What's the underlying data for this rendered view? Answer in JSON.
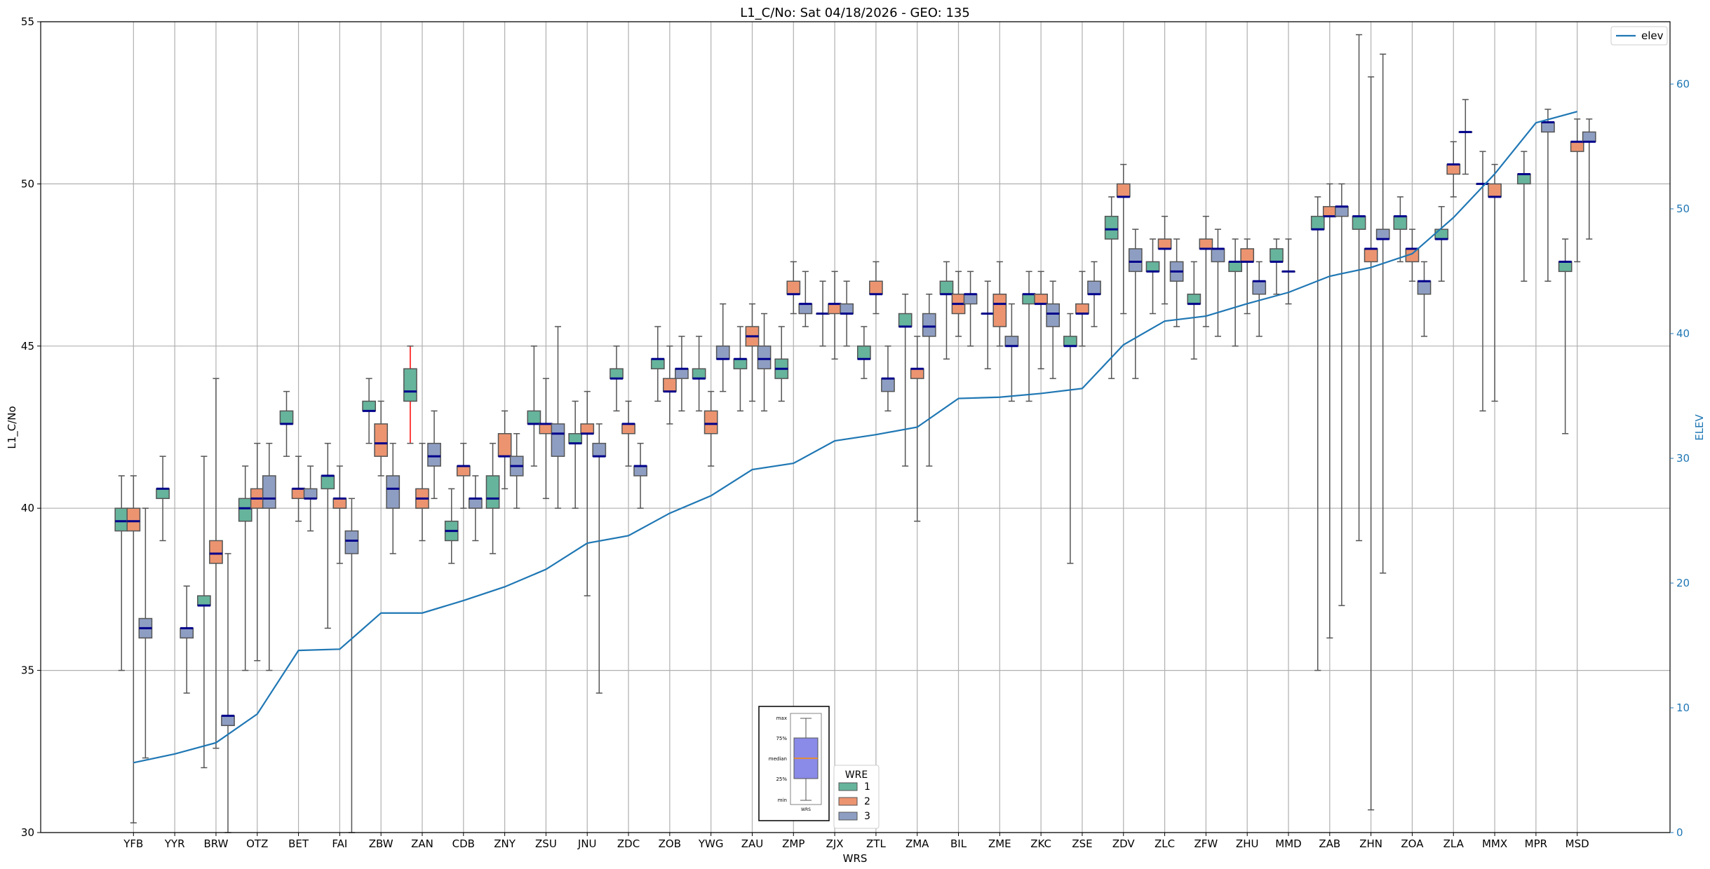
{
  "chart_data": {
    "type": "boxplot",
    "title": "L1_C/No: Sat 04/18/2026 - GEO: 135",
    "xlabel": "WRS",
    "ylabel": "L1_C/No",
    "y2label": "ELEV",
    "ylim": [
      30,
      55
    ],
    "y2lim": [
      0,
      65
    ],
    "yticks": [
      30,
      35,
      40,
      45,
      50,
      55
    ],
    "y2ticks": [
      0,
      10,
      20,
      30,
      40,
      50,
      60
    ],
    "grid": true,
    "colors": {
      "wre1": "#66b49c",
      "wre2": "#ec9470",
      "wre3": "#8e9ec3",
      "median": "#00008b",
      "elev": "#1f77b4",
      "whisker": "#555555",
      "whisker_alert": "#ff0000"
    },
    "legend_elev": {
      "label": "elev",
      "placement": "top-right"
    },
    "legend_wre": {
      "title": "WRE",
      "entries": [
        "1",
        "2",
        "3"
      ],
      "placement": "bottom-center"
    },
    "box_key": {
      "labels": [
        "max",
        "75%",
        "median",
        "25%",
        "min"
      ],
      "xlabel": "WRS"
    },
    "box_fields": [
      "wre",
      "min",
      "q1",
      "median",
      "q3",
      "max"
    ],
    "stations": [
      {
        "name": "YFB",
        "elev": 5.6,
        "boxes": [
          [
            1,
            35,
            39.3,
            39.6,
            40,
            41
          ],
          [
            2,
            30.3,
            39.3,
            39.6,
            40,
            41
          ],
          [
            3,
            32.3,
            36,
            36.3,
            36.6,
            40
          ]
        ]
      },
      {
        "name": "YYR",
        "elev": 6.3,
        "boxes": [
          [
            1,
            39,
            40.3,
            40.6,
            40.6,
            41.6
          ],
          [
            3,
            34.3,
            36,
            36.3,
            36.3,
            37.6
          ]
        ]
      },
      {
        "name": "BRW",
        "elev": 7.2,
        "boxes": [
          [
            1,
            32,
            37,
            37,
            37.3,
            41.6
          ],
          [
            2,
            32.6,
            38.3,
            38.6,
            39,
            44
          ],
          [
            3,
            30,
            33.3,
            33.6,
            33.6,
            38.6
          ]
        ]
      },
      {
        "name": "OTZ",
        "elev": 9.5,
        "boxes": [
          [
            1,
            35,
            39.6,
            40,
            40.3,
            41.3
          ],
          [
            2,
            35.3,
            40,
            40.3,
            40.6,
            42
          ],
          [
            3,
            35,
            40,
            40.3,
            41,
            42
          ]
        ]
      },
      {
        "name": "BET",
        "elev": 14.6,
        "boxes": [
          [
            1,
            41.6,
            42.6,
            42.6,
            43,
            43.6
          ],
          [
            2,
            39.6,
            40.3,
            40.6,
            40.6,
            41.6
          ],
          [
            3,
            39.3,
            40.3,
            40.3,
            40.6,
            41.3
          ]
        ]
      },
      {
        "name": "FAI",
        "elev": 14.7,
        "boxes": [
          [
            1,
            36.3,
            40.6,
            41,
            41,
            42
          ],
          [
            2,
            38.3,
            40,
            40.3,
            40.3,
            41.3
          ],
          [
            3,
            30,
            38.6,
            39,
            39.3,
            40.3
          ]
        ]
      },
      {
        "name": "ZBW",
        "elev": 17.6,
        "boxes": [
          [
            1,
            42,
            43,
            43,
            43.3,
            44
          ],
          [
            2,
            41,
            41.6,
            42,
            42.6,
            43.3
          ],
          [
            3,
            38.6,
            40,
            40.6,
            41,
            42
          ]
        ]
      },
      {
        "name": "ZAN",
        "elev": 17.6,
        "alert": 1,
        "boxes": [
          [
            1,
            42,
            43.3,
            43.6,
            44.3,
            45
          ],
          [
            2,
            39,
            40,
            40.3,
            40.6,
            42
          ],
          [
            3,
            40.3,
            41.3,
            41.6,
            42,
            43
          ]
        ]
      },
      {
        "name": "CDB",
        "elev": 18.6,
        "boxes": [
          [
            1,
            38.3,
            39,
            39.3,
            39.6,
            40.6
          ],
          [
            2,
            40,
            41,
            41.3,
            41.3,
            42
          ],
          [
            3,
            39,
            40,
            40.3,
            40.3,
            41
          ]
        ]
      },
      {
        "name": "ZNY",
        "elev": 19.7,
        "boxes": [
          [
            1,
            38.6,
            40,
            40.3,
            41,
            42
          ],
          [
            2,
            40.6,
            41.6,
            41.6,
            42.3,
            43
          ],
          [
            3,
            40,
            41,
            41.3,
            41.6,
            42.3
          ]
        ]
      },
      {
        "name": "ZSU",
        "elev": 21.1,
        "boxes": [
          [
            1,
            41.3,
            42.6,
            42.6,
            43,
            45
          ],
          [
            2,
            40.3,
            42.3,
            42.6,
            42.6,
            44
          ],
          [
            3,
            40,
            41.6,
            42.3,
            42.6,
            45.6
          ]
        ]
      },
      {
        "name": "JNU",
        "elev": 23.2,
        "boxes": [
          [
            1,
            40,
            42,
            42,
            42.3,
            43.3
          ],
          [
            2,
            37.3,
            42.3,
            42.3,
            42.6,
            43.6
          ],
          [
            3,
            34.3,
            41.6,
            41.6,
            42,
            42.6
          ]
        ]
      },
      {
        "name": "ZDC",
        "elev": 23.8,
        "boxes": [
          [
            1,
            43,
            44,
            44,
            44.3,
            45
          ],
          [
            2,
            41.3,
            42.3,
            42.6,
            42.6,
            43.3
          ],
          [
            3,
            40,
            41,
            41.3,
            41.3,
            42
          ]
        ]
      },
      {
        "name": "ZOB",
        "elev": 25.6,
        "boxes": [
          [
            1,
            43.3,
            44.3,
            44.6,
            44.6,
            45.6
          ],
          [
            2,
            42.6,
            43.6,
            43.6,
            44,
            45
          ],
          [
            3,
            43,
            44,
            44.3,
            44.3,
            45.3
          ]
        ]
      },
      {
        "name": "YWG",
        "elev": 27.0,
        "boxes": [
          [
            1,
            43,
            44,
            44,
            44.3,
            45.3
          ],
          [
            2,
            41.3,
            42.3,
            42.6,
            43,
            43.6
          ],
          [
            3,
            43.6,
            44.6,
            44.6,
            45,
            46.3
          ]
        ]
      },
      {
        "name": "ZAU",
        "elev": 29.1,
        "boxes": [
          [
            1,
            43,
            44.3,
            44.6,
            44.6,
            45.6
          ],
          [
            2,
            43.3,
            45,
            45.3,
            45.6,
            46.3
          ],
          [
            3,
            43,
            44.3,
            44.6,
            45,
            46
          ]
        ]
      },
      {
        "name": "ZMP",
        "elev": 29.6,
        "boxes": [
          [
            1,
            43.3,
            44,
            44.3,
            44.6,
            45.6
          ],
          [
            2,
            46,
            46.6,
            46.6,
            47,
            47.6
          ],
          [
            3,
            45.6,
            46,
            46.3,
            46.3,
            47.3
          ]
        ]
      },
      {
        "name": "ZJX",
        "elev": 31.4,
        "boxes": [
          [
            1,
            45,
            46,
            46,
            46,
            47
          ],
          [
            2,
            44.6,
            46,
            46.3,
            46.3,
            47.3
          ],
          [
            3,
            45,
            46,
            46,
            46.3,
            47
          ]
        ]
      },
      {
        "name": "ZTL",
        "elev": 31.9,
        "boxes": [
          [
            1,
            44,
            44.6,
            44.6,
            45,
            45.6
          ],
          [
            2,
            46,
            46.6,
            46.6,
            47,
            47.6
          ],
          [
            3,
            43,
            43.6,
            44,
            44,
            45
          ]
        ]
      },
      {
        "name": "ZMA",
        "elev": 32.5,
        "boxes": [
          [
            1,
            41.3,
            45.6,
            45.6,
            46,
            46.6
          ],
          [
            2,
            39.6,
            44,
            44.3,
            44.3,
            45.3
          ],
          [
            3,
            41.3,
            45.3,
            45.6,
            46,
            46.6
          ]
        ]
      },
      {
        "name": "BIL",
        "elev": 34.8,
        "boxes": [
          [
            1,
            44.6,
            46.6,
            46.6,
            47,
            47.6
          ],
          [
            2,
            45.3,
            46,
            46.3,
            46.6,
            47.3
          ],
          [
            3,
            45,
            46.3,
            46.6,
            46.6,
            47.3
          ]
        ]
      },
      {
        "name": "ZME",
        "elev": 34.9,
        "boxes": [
          [
            1,
            44.3,
            46,
            46,
            46,
            47
          ],
          [
            2,
            45,
            45.6,
            46.3,
            46.6,
            47.6
          ],
          [
            3,
            43.3,
            45,
            45,
            45.3,
            46.3
          ]
        ]
      },
      {
        "name": "ZKC",
        "elev": 35.2,
        "boxes": [
          [
            1,
            43.3,
            46.3,
            46.6,
            46.6,
            47.3
          ],
          [
            2,
            44.3,
            46.3,
            46.3,
            46.6,
            47.3
          ],
          [
            3,
            44,
            45.6,
            46,
            46.3,
            47
          ]
        ]
      },
      {
        "name": "ZSE",
        "elev": 35.6,
        "boxes": [
          [
            1,
            38.3,
            45,
            45,
            45.3,
            46
          ],
          [
            2,
            45,
            46,
            46,
            46.3,
            47.3
          ],
          [
            3,
            45.6,
            46.6,
            46.6,
            47,
            47.6
          ]
        ]
      },
      {
        "name": "ZDV",
        "elev": 39.1,
        "boxes": [
          [
            1,
            44,
            48.3,
            48.6,
            49,
            49.6
          ],
          [
            2,
            46,
            49.6,
            49.6,
            50,
            50.6
          ],
          [
            3,
            44,
            47.3,
            47.6,
            48,
            48.6
          ]
        ]
      },
      {
        "name": "ZLC",
        "elev": 41.0,
        "boxes": [
          [
            1,
            46,
            47.3,
            47.3,
            47.6,
            48.3
          ],
          [
            2,
            46.3,
            48,
            48,
            48.3,
            49
          ],
          [
            3,
            45.6,
            47,
            47.3,
            47.6,
            48.3
          ]
        ]
      },
      {
        "name": "ZFW",
        "elev": 41.4,
        "boxes": [
          [
            1,
            44.6,
            46.3,
            46.3,
            46.6,
            47.6
          ],
          [
            2,
            45.6,
            48,
            48,
            48.3,
            49
          ],
          [
            3,
            45.3,
            47.6,
            48,
            48,
            48.6
          ]
        ]
      },
      {
        "name": "ZHU",
        "elev": 42.4,
        "boxes": [
          [
            1,
            45,
            47.3,
            47.6,
            47.6,
            48.3
          ],
          [
            2,
            46,
            47.6,
            47.6,
            48,
            48.3
          ],
          [
            3,
            45.3,
            46.6,
            47,
            47,
            47.6
          ]
        ]
      },
      {
        "name": "MMD",
        "elev": 43.3,
        "boxes": [
          [
            1,
            46.6,
            47.6,
            47.6,
            48,
            48.3
          ],
          [
            2,
            46.3,
            47.3,
            47.3,
            47.3,
            48.3
          ]
        ]
      },
      {
        "name": "ZAB",
        "elev": 44.6,
        "boxes": [
          [
            1,
            35,
            48.6,
            48.6,
            49,
            49.6
          ],
          [
            2,
            36,
            49,
            49,
            49.3,
            50
          ],
          [
            3,
            37,
            49,
            49.3,
            49.3,
            50
          ]
        ]
      },
      {
        "name": "ZHN",
        "elev": 45.3,
        "boxes": [
          [
            1,
            39,
            48.6,
            49,
            49,
            54.6
          ],
          [
            2,
            30.7,
            47.6,
            48,
            48,
            53.3
          ],
          [
            3,
            38,
            48.3,
            48.3,
            48.6,
            54
          ]
        ]
      },
      {
        "name": "ZOA",
        "elev": 46.4,
        "boxes": [
          [
            1,
            47.6,
            48.6,
            49,
            49,
            49.6
          ],
          [
            2,
            47,
            47.6,
            48,
            48,
            48.6
          ],
          [
            3,
            45.3,
            46.6,
            47,
            47,
            47.6
          ]
        ]
      },
      {
        "name": "ZLA",
        "elev": 49.3,
        "boxes": [
          [
            1,
            47,
            48.3,
            48.3,
            48.6,
            49.3
          ],
          [
            2,
            49.6,
            50.3,
            50.6,
            50.6,
            51.3
          ],
          [
            3,
            50.3,
            51.6,
            51.6,
            51.6,
            52.6
          ]
        ]
      },
      {
        "name": "MMX",
        "elev": 52.8,
        "boxes": [
          [
            1,
            43,
            50,
            50,
            50,
            51
          ],
          [
            2,
            43.3,
            49.6,
            49.6,
            50,
            50.6
          ]
        ]
      },
      {
        "name": "MPR",
        "elev": 56.9,
        "boxes": [
          [
            1,
            47,
            50,
            50.3,
            50.3,
            51
          ],
          [
            3,
            47,
            51.6,
            51.9,
            51.9,
            52.3
          ]
        ]
      },
      {
        "name": "MSD",
        "elev": 57.8,
        "boxes": [
          [
            1,
            42.3,
            47.3,
            47.6,
            47.6,
            48.3
          ],
          [
            2,
            47.6,
            51,
            51.3,
            51.3,
            52
          ],
          [
            3,
            48.3,
            51.3,
            51.3,
            51.6,
            52
          ]
        ]
      }
    ]
  }
}
